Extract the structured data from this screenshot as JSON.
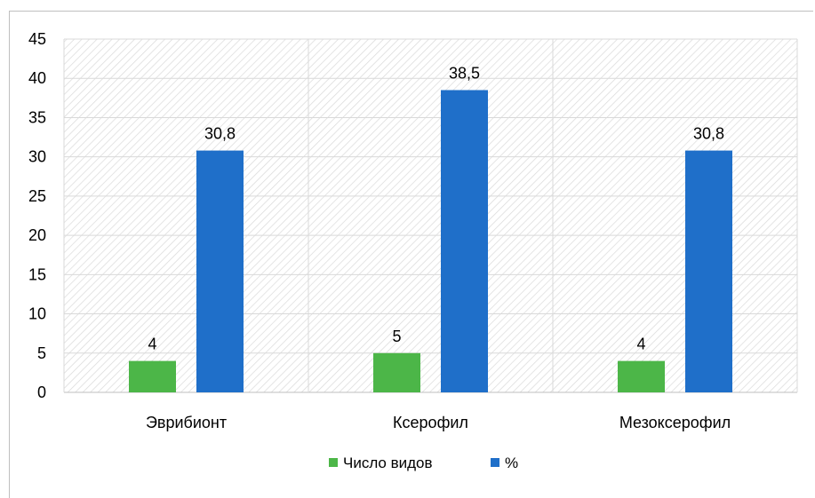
{
  "chart_data": {
    "type": "bar",
    "title": "",
    "xlabel": "",
    "ylabel": "",
    "categories": [
      "Эврибионт",
      "Ксерофил",
      "Мезоксерофил"
    ],
    "series": [
      {
        "name": "Число видов",
        "values": [
          4,
          5,
          4
        ],
        "labels": [
          "4",
          "5",
          "4"
        ],
        "color": "#4cb648"
      },
      {
        "name": "%",
        "values": [
          30.8,
          38.5,
          30.8
        ],
        "labels": [
          "30,8",
          "38,5",
          "30,8"
        ],
        "color": "#1f6fc9"
      }
    ],
    "ylim": [
      0,
      45
    ],
    "yticks": [
      "0",
      "5",
      "10",
      "15",
      "20",
      "25",
      "30",
      "35",
      "40",
      "45"
    ],
    "grid": true,
    "legend_position": "bottom"
  }
}
